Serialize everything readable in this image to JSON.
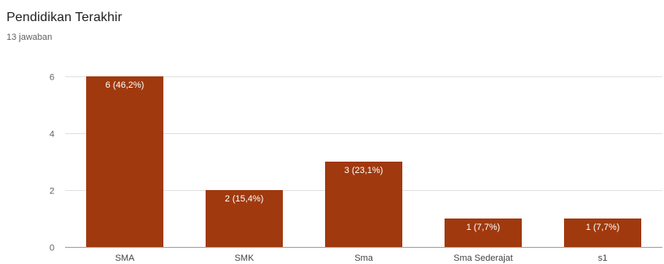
{
  "question": {
    "title": "Pendidikan Terakhir",
    "responses": "13 jawaban"
  },
  "chart_data": {
    "type": "bar",
    "title": "Pendidikan Terakhir",
    "subtitle": "13 jawaban",
    "categories": [
      "SMA",
      "SMK",
      "Sma",
      "Sma Sederajat",
      "s1"
    ],
    "values": [
      6,
      2,
      3,
      1,
      1
    ],
    "data_labels": [
      "6 (46,2%)",
      "2 (15,4%)",
      "3 (23,1%)",
      "1 (7,7%)",
      "1 (7,7%)"
    ],
    "ylim": [
      0,
      6
    ],
    "yticks": [
      0,
      2,
      4,
      6
    ],
    "grid": true,
    "bar_color": "#a0390e",
    "grid_color": "#e0e0e0",
    "axis_color": "#9e9e9e"
  }
}
